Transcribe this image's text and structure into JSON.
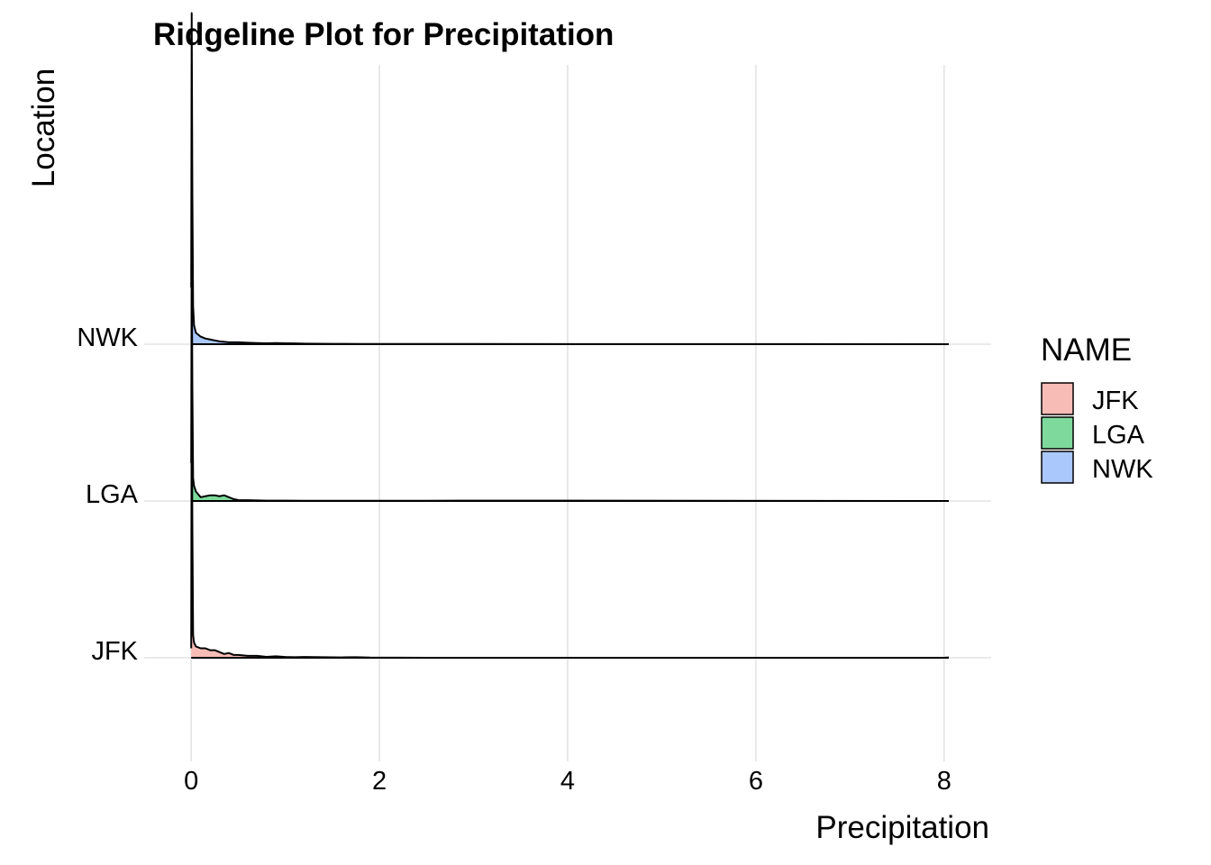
{
  "chart_data": {
    "type": "ridgeline",
    "title": "Ridgeline Plot for Precipitation",
    "xlabel": "Precipitation",
    "ylabel": "Location",
    "xlim": [
      -0.5,
      8.5
    ],
    "x_ticks": [
      0,
      2,
      4,
      6,
      8
    ],
    "x_tick_labels": [
      "0",
      "2",
      "4",
      "6",
      "8"
    ],
    "grid": true,
    "legend": {
      "title": "NAME",
      "position": "right",
      "entries": [
        {
          "label": "JFK",
          "color": "#F8BCB7"
        },
        {
          "label": "LGA",
          "color": "#7DDA9C"
        },
        {
          "label": "NWK",
          "color": "#ABC8FC"
        }
      ]
    },
    "categories": [
      "JFK",
      "LGA",
      "NWK"
    ],
    "series": [
      {
        "name": "JFK",
        "color": "#F8BCB7",
        "density": [
          [
            0.0,
            0.05
          ],
          [
            0.005,
            1.5
          ],
          [
            0.012,
            0.7
          ],
          [
            0.02,
            0.12
          ],
          [
            0.03,
            0.08
          ],
          [
            0.05,
            0.06
          ],
          [
            0.1,
            0.05
          ],
          [
            0.15,
            0.05
          ],
          [
            0.2,
            0.04
          ],
          [
            0.25,
            0.04
          ],
          [
            0.3,
            0.03
          ],
          [
            0.35,
            0.02
          ],
          [
            0.4,
            0.025
          ],
          [
            0.45,
            0.015
          ],
          [
            0.5,
            0.015
          ],
          [
            0.6,
            0.01
          ],
          [
            0.7,
            0.01
          ],
          [
            0.8,
            0.005
          ],
          [
            0.9,
            0.008
          ],
          [
            1.0,
            0.004
          ],
          [
            1.1,
            0.003
          ],
          [
            1.2,
            0.004
          ],
          [
            1.4,
            0.003
          ],
          [
            1.6,
            0.002
          ],
          [
            1.75,
            0.003
          ],
          [
            1.9,
            0.001
          ],
          [
            2.5,
            0.0
          ],
          [
            8.0,
            0.0
          ],
          [
            8.05,
            0.002
          ]
        ]
      },
      {
        "name": "LGA",
        "color": "#7DDA9C",
        "density": [
          [
            0.0,
            0.2
          ],
          [
            0.005,
            1.35
          ],
          [
            0.012,
            0.6
          ],
          [
            0.02,
            0.12
          ],
          [
            0.03,
            0.08
          ],
          [
            0.05,
            0.05
          ],
          [
            0.1,
            0.02
          ],
          [
            0.15,
            0.025
          ],
          [
            0.2,
            0.03
          ],
          [
            0.25,
            0.03
          ],
          [
            0.3,
            0.025
          ],
          [
            0.35,
            0.03
          ],
          [
            0.4,
            0.02
          ],
          [
            0.45,
            0.01
          ],
          [
            0.5,
            0.005
          ],
          [
            0.6,
            0.004
          ],
          [
            0.7,
            0.003
          ],
          [
            0.8,
            0.002
          ],
          [
            1.0,
            0.002
          ],
          [
            1.2,
            0.001
          ],
          [
            1.6,
            0.001
          ],
          [
            2.5,
            0.001
          ],
          [
            3.05,
            0.002
          ],
          [
            4.1,
            0.002
          ],
          [
            8.05,
            0.0
          ]
        ]
      },
      {
        "name": "NWK",
        "color": "#ABC8FC",
        "density": [
          [
            0.0,
            0.3
          ],
          [
            0.005,
            1.75
          ],
          [
            0.012,
            0.8
          ],
          [
            0.02,
            0.2
          ],
          [
            0.03,
            0.1
          ],
          [
            0.05,
            0.06
          ],
          [
            0.1,
            0.04
          ],
          [
            0.15,
            0.03
          ],
          [
            0.2,
            0.025
          ],
          [
            0.25,
            0.02
          ],
          [
            0.3,
            0.015
          ],
          [
            0.4,
            0.01
          ],
          [
            0.5,
            0.01
          ],
          [
            0.6,
            0.008
          ],
          [
            0.7,
            0.006
          ],
          [
            0.8,
            0.005
          ],
          [
            0.9,
            0.006
          ],
          [
            1.0,
            0.005
          ],
          [
            1.1,
            0.004
          ],
          [
            1.2,
            0.003
          ],
          [
            1.5,
            0.002
          ],
          [
            1.8,
            0.001
          ],
          [
            2.3,
            0.001
          ],
          [
            3.05,
            0.001
          ],
          [
            8.05,
            0.0
          ]
        ]
      }
    ]
  }
}
